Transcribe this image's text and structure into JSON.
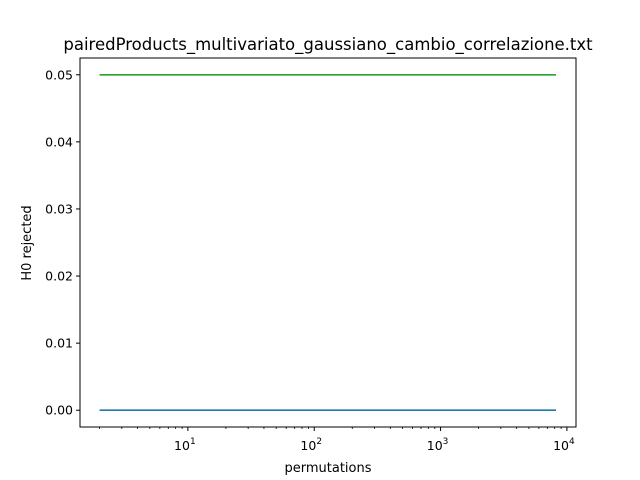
{
  "chart_data": {
    "type": "line",
    "title": "pairedProducts_multivariato_gaussiano_cambio_correlazione.txt",
    "xlabel": "permutations",
    "ylabel": "H0 rejected",
    "xscale": "log",
    "xlim": [
      1.4,
      11800
    ],
    "ylim": [
      -0.0025,
      0.0525
    ],
    "grid": false,
    "x_ticks": [
      {
        "value": 10,
        "mantissa": "10",
        "exp": "1"
      },
      {
        "value": 100,
        "mantissa": "10",
        "exp": "2"
      },
      {
        "value": 1000,
        "mantissa": "10",
        "exp": "3"
      },
      {
        "value": 10000,
        "mantissa": "10",
        "exp": "4"
      }
    ],
    "y_ticks": [
      "0.00",
      "0.01",
      "0.02",
      "0.03",
      "0.04",
      "0.05"
    ],
    "series": [
      {
        "color": "#1f77b4",
        "x": [
          2,
          8192
        ],
        "y": [
          0.0,
          0.0
        ]
      },
      {
        "color": "#2ca02c",
        "x": [
          2,
          8192
        ],
        "y": [
          0.05,
          0.05
        ]
      }
    ]
  }
}
